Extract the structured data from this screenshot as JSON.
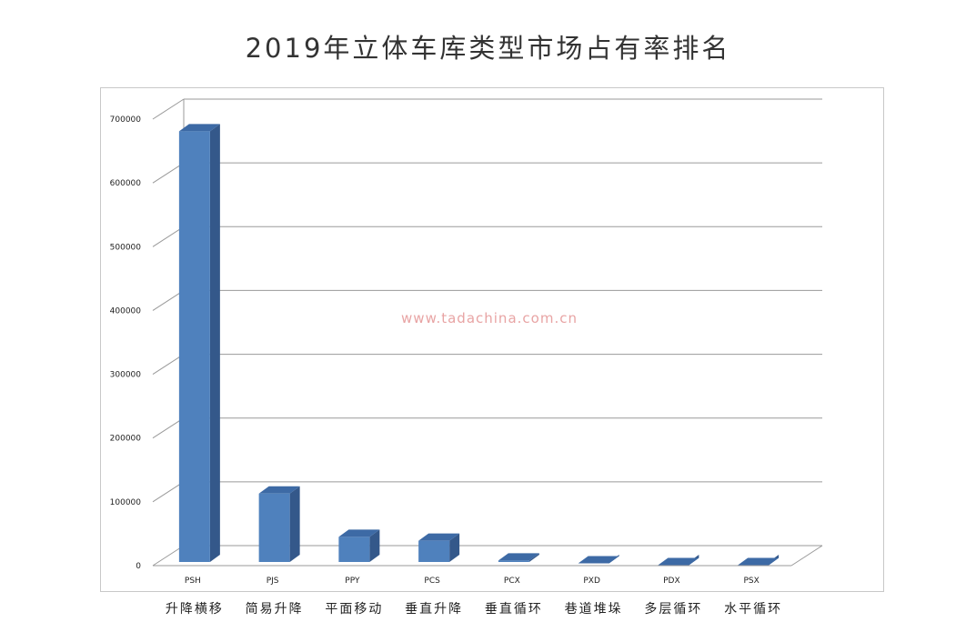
{
  "chart_data": {
    "type": "bar",
    "title": "2019年立体车库类型市场占有率排名",
    "categories": [
      "PSH",
      "PJS",
      "PPY",
      "PCS",
      "PCX",
      "PXD",
      "PDX",
      "PSX"
    ],
    "category_names": [
      "升降横移",
      "简易升降",
      "平面移动",
      "垂直升降",
      "垂直循环",
      "巷道堆垛",
      "多层循环",
      "水平循环"
    ],
    "values": [
      681000,
      113000,
      45000,
      39000,
      8000,
      3500,
      800,
      700
    ],
    "ylim": [
      0,
      700000
    ],
    "yticks": [
      "0",
      "100000",
      "200000",
      "300000",
      "400000",
      "500000",
      "600000",
      "700000"
    ],
    "grid": true,
    "bar_color": "#4f81bd",
    "watermark": "www.tadachina.com.cn"
  }
}
